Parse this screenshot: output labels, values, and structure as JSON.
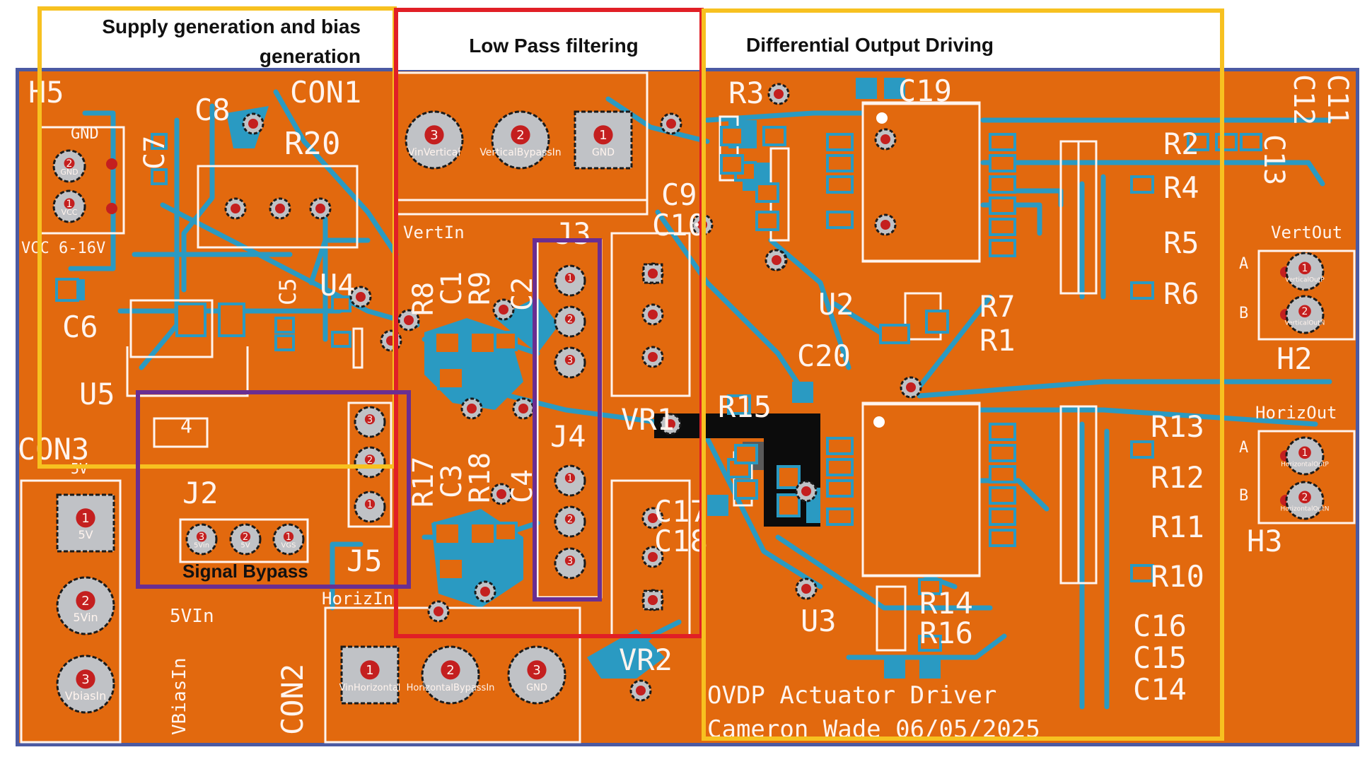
{
  "colors": {
    "board": "#e2690e",
    "trace": "#2a9ac2",
    "silk": "#fff4ee",
    "pad": "#c0c2c6",
    "drill": "#c41f1f",
    "outline": "#4b5aa3",
    "box_supply": "#f7c120",
    "box_lowpass": "#e11f26",
    "box_output": "#f7c120",
    "box_bypass": "#6a2e91"
  },
  "section_labels": {
    "supply_line1": "Supply generation and bias",
    "supply_line2": "generation",
    "lowpass": "Low Pass filtering",
    "output": "Differential Output Driving",
    "bypass": "Signal Bypass"
  },
  "refdes": {
    "H5": "H5",
    "CON1": "CON1",
    "C8": "C8",
    "C7": "C7",
    "R20": "R20",
    "GND": "GND",
    "VCC": "VCC 6-16V",
    "C6": "C6",
    "C5": "C5",
    "U4": "U4",
    "U5": "U5",
    "CON3": "CON3",
    "U5_pin": "4",
    "J2": "J2",
    "J5": "J5",
    "HorizIn": "HorizIn",
    "5VIn": "5VIn",
    "VBiasIn": "VBiasIn",
    "CON2": "CON2",
    "5V": "5V",
    "VertIn": "VertIn",
    "R8": "R8",
    "C1": "C1",
    "R9": "R9",
    "C2": "C2",
    "J3": "J3",
    "R17": "R17",
    "C3": "C3",
    "R18": "R18",
    "C4": "C4",
    "J4": "J4",
    "C9": "C9",
    "C10": "C10",
    "VR1": "VR1",
    "C17": "C17",
    "C18": "C18",
    "VR2": "VR2",
    "R3": "R3",
    "C19": "C19",
    "U2": "U2",
    "R7": "R7",
    "R1": "R1",
    "C20": "C20",
    "R15": "R15",
    "U3": "U3",
    "R14": "R14",
    "R16": "R16",
    "R2": "R2",
    "R4": "R4",
    "R5": "R5",
    "R6": "R6",
    "R13": "R13",
    "R12": "R12",
    "R11": "R11",
    "R10": "R10",
    "C16": "C16",
    "C15": "C15",
    "C14": "C14",
    "C13": "C13",
    "C12": "C12",
    "C11": "C11",
    "VertOut": "VertOut",
    "HorizOut": "HorizOut",
    "H2": "H2",
    "H3": "H3",
    "A1": "A",
    "B1": "B",
    "A2": "A",
    "B2": "B"
  },
  "connectors": {
    "con1_pins": [
      "3",
      "2",
      "1"
    ],
    "con1_names": [
      "VinVertical",
      "VerticalBypassIn",
      "GND"
    ],
    "con2_pins": [
      "1",
      "2",
      "3"
    ],
    "con2_names": [
      "VinHorizontal",
      "HorizontalBypassIn",
      "GND"
    ],
    "con3_pins": [
      "1",
      "2",
      "3"
    ],
    "con3_names": [
      "5V",
      "5Vin",
      "VbiasIn"
    ],
    "gnd_pins": [
      "2",
      "1"
    ],
    "gnd_names": [
      "GND",
      "VCC"
    ],
    "j2_pins": [
      "3",
      "2",
      "1"
    ],
    "j2_names": [
      "5Vin",
      "5V",
      "VGS"
    ],
    "vertout_pins": [
      "1",
      "2"
    ],
    "vertout_names": [
      "VerticalOutP",
      "VerticalOutN"
    ],
    "horizout_pins": [
      "1",
      "2"
    ],
    "horizout_names": [
      "HorizontalOutP",
      "HorizontalOutN"
    ],
    "j3_pins": [
      "1",
      "2",
      "3"
    ],
    "j4_pins": [
      "1",
      "2",
      "3"
    ],
    "j5_pins": [
      "3",
      "2",
      "1"
    ]
  },
  "footer": {
    "title": "OVDP Actuator Driver",
    "author": "Cameron Wade 06/05/2025"
  }
}
